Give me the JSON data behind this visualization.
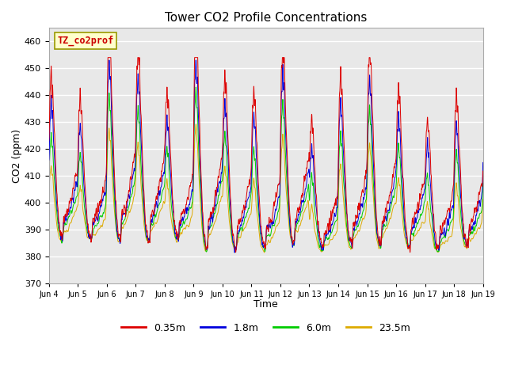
{
  "title": "Tower CO2 Profile Concentrations",
  "xlabel": "Time",
  "ylabel": "CO2 (ppm)",
  "ylim": [
    370,
    465
  ],
  "yticks": [
    370,
    380,
    390,
    400,
    410,
    420,
    430,
    440,
    450,
    460
  ],
  "legend_labels": [
    "0.35m",
    "1.8m",
    "6.0m",
    "23.5m"
  ],
  "legend_colors": [
    "#dd0000",
    "#0000dd",
    "#00cc00",
    "#ddaa00"
  ],
  "box_label": "TZ_co2prof",
  "box_text_color": "#cc0000",
  "box_bg_color": "#ffffcc",
  "plot_bg_color": "#e8e8e8",
  "fig_bg_color": "#ffffff",
  "n_days": 15,
  "start_day": 4,
  "pts_per_day": 288,
  "base_co2": 386,
  "grid_color": "#ffffff",
  "grid_lw": 1.0,
  "xtick_labels": [
    "Jun 4",
    "Jun 5",
    "Jun 6",
    "Jun 7",
    "Jun 8",
    "Jun 9",
    "Jun 10",
    "Jun 11",
    "Jun 12",
    "Jun 13",
    "Jun 14",
    "Jun 15",
    "Jun 16",
    "Jun 17",
    "Jun 18",
    "Jun 19"
  ],
  "peak_heights": [
    435,
    428,
    448,
    443,
    430,
    449,
    435,
    430,
    445,
    421,
    435,
    443,
    431,
    422,
    428,
    440
  ],
  "trough_heights": [
    386,
    386,
    385,
    385,
    386,
    382,
    382,
    382,
    384,
    382,
    383,
    383,
    383,
    382,
    383,
    384
  ]
}
